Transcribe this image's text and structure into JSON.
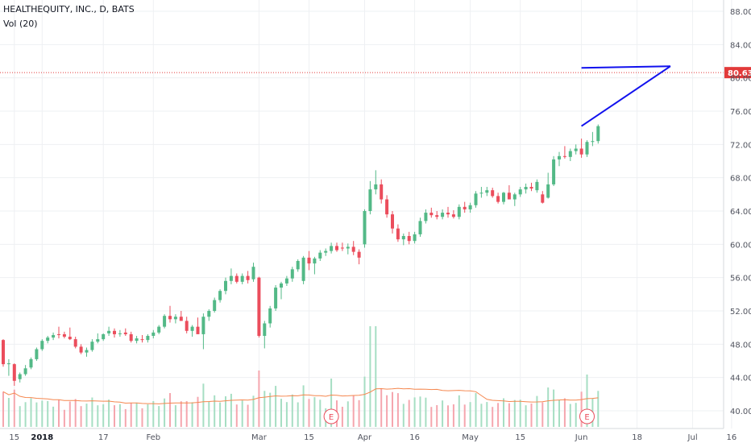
{
  "header": {
    "title": "HEALTHEQUITY, INC., D, BATS",
    "volume_label": "Vol (20)"
  },
  "colors": {
    "up": "#53b987",
    "down": "#eb4d5c",
    "vol_up": "#a6dec3",
    "vol_down": "#f5a6ae",
    "ma": "#f5874f",
    "trendline": "#1111ee",
    "price_line": "#e23a3a",
    "grid": "#eef0f3",
    "axis_text": "#50535e"
  },
  "chart_data": {
    "type": "candlestick",
    "title": "HEALTHEQUITY, INC., D, BATS",
    "ylim": [
      38,
      89
    ],
    "yticks": [
      "88.00",
      "84.00",
      "80.00",
      "76.00",
      "72.00",
      "68.00",
      "64.00",
      "60.00",
      "56.00",
      "52.00",
      "48.00",
      "44.00",
      "40.00"
    ],
    "ytick_values": [
      88,
      84,
      80,
      76,
      72,
      68,
      64,
      60,
      56,
      52,
      48,
      44,
      40
    ],
    "xticks": [
      {
        "label": "15",
        "index": 2,
        "bold": false
      },
      {
        "label": "2018",
        "index": 7,
        "bold": true
      },
      {
        "label": "17",
        "index": 18,
        "bold": false
      },
      {
        "label": "Feb",
        "index": 27,
        "bold": false
      },
      {
        "label": "Mar",
        "index": 46,
        "bold": false
      },
      {
        "label": "15",
        "index": 55,
        "bold": false
      },
      {
        "label": "Apr",
        "index": 65,
        "bold": false
      },
      {
        "label": "16",
        "index": 74,
        "bold": false
      },
      {
        "label": "May",
        "index": 84,
        "bold": false
      },
      {
        "label": "15",
        "index": 93,
        "bold": false
      },
      {
        "label": "Jun",
        "index": 104,
        "bold": false
      },
      {
        "label": "18",
        "index": 114,
        "bold": false
      },
      {
        "label": "Jul",
        "index": 124,
        "bold": false
      },
      {
        "label": "16",
        "index": 131,
        "bold": false
      }
    ],
    "last_price": "80.63",
    "last_price_value": 80.63,
    "earnings_markers": [
      {
        "label": "E",
        "index": 59
      },
      {
        "label": "E",
        "index": 105
      }
    ],
    "trendlines": [
      {
        "name": "resistance",
        "from": [
          104,
          81.2
        ],
        "to": [
          120,
          81.4
        ]
      },
      {
        "name": "support",
        "from": [
          104,
          74.2
        ],
        "to": [
          120,
          81.4
        ]
      }
    ],
    "candles": [
      [
        48.5,
        48.6,
        45.3,
        45.6
      ],
      [
        45.6,
        46.2,
        44.2,
        45.7
      ],
      [
        45.6,
        45.7,
        43.0,
        43.6
      ],
      [
        43.8,
        44.6,
        43.4,
        44.4
      ],
      [
        44.4,
        45.5,
        44.2,
        45.1
      ],
      [
        45.2,
        46.4,
        45.0,
        46.2
      ],
      [
        46.2,
        47.6,
        46.0,
        47.4
      ],
      [
        47.4,
        48.6,
        47.2,
        48.4
      ],
      [
        48.4,
        49.0,
        48.1,
        48.8
      ],
      [
        48.8,
        49.4,
        48.5,
        49.1
      ],
      [
        49.2,
        50.1,
        48.7,
        49.1
      ],
      [
        49.2,
        49.5,
        48.7,
        48.9
      ],
      [
        48.9,
        50.0,
        48.5,
        48.6
      ],
      [
        48.6,
        48.9,
        47.5,
        47.7
      ],
      [
        47.7,
        48.0,
        46.8,
        47.0
      ],
      [
        47.0,
        47.6,
        46.5,
        47.3
      ],
      [
        47.3,
        48.6,
        47.1,
        48.3
      ],
      [
        48.3,
        49.3,
        48.1,
        48.6
      ],
      [
        48.6,
        49.3,
        48.4,
        49.2
      ],
      [
        49.3,
        50.1,
        49.0,
        49.6
      ],
      [
        49.6,
        49.9,
        48.8,
        49.2
      ],
      [
        49.3,
        49.7,
        48.9,
        49.3
      ],
      [
        49.4,
        49.9,
        49.0,
        49.2
      ],
      [
        49.2,
        49.5,
        48.2,
        48.4
      ],
      [
        48.4,
        49.0,
        48.1,
        48.7
      ],
      [
        48.6,
        49.1,
        48.2,
        48.5
      ],
      [
        48.5,
        49.2,
        48.2,
        49.0
      ],
      [
        49.0,
        49.7,
        48.7,
        49.4
      ],
      [
        49.4,
        50.3,
        49.2,
        50.1
      ],
      [
        50.1,
        51.6,
        49.9,
        51.4
      ],
      [
        51.4,
        52.6,
        50.6,
        51.0
      ],
      [
        51.0,
        51.6,
        50.5,
        51.3
      ],
      [
        51.3,
        52.0,
        50.8,
        50.8
      ],
      [
        50.8,
        51.3,
        49.3,
        49.6
      ],
      [
        49.6,
        50.3,
        48.9,
        50.1
      ],
      [
        50.1,
        51.2,
        49.5,
        49.2
      ],
      [
        49.2,
        51.7,
        47.4,
        51.3
      ],
      [
        51.3,
        52.2,
        50.8,
        52.0
      ],
      [
        52.0,
        53.6,
        51.8,
        53.3
      ],
      [
        53.3,
        54.6,
        53.0,
        54.4
      ],
      [
        54.4,
        56.0,
        54.0,
        55.6
      ],
      [
        55.6,
        57.1,
        55.2,
        56.2
      ],
      [
        56.2,
        56.5,
        55.3,
        55.5
      ],
      [
        55.5,
        56.5,
        55.2,
        56.2
      ],
      [
        56.2,
        56.8,
        55.3,
        55.7
      ],
      [
        55.8,
        57.8,
        55.5,
        57.3
      ],
      [
        56.0,
        56.1,
        48.8,
        49.0
      ],
      [
        49.0,
        50.8,
        47.5,
        50.5
      ],
      [
        50.5,
        52.6,
        50.0,
        52.3
      ],
      [
        52.3,
        55.1,
        52.0,
        54.8
      ],
      [
        54.8,
        55.5,
        53.4,
        55.3
      ],
      [
        55.3,
        56.2,
        55.0,
        55.9
      ],
      [
        55.9,
        57.3,
        55.5,
        57.0
      ],
      [
        57.0,
        58.2,
        56.7,
        58.0
      ],
      [
        55.6,
        58.6,
        55.2,
        58.4
      ],
      [
        58.4,
        59.2,
        56.9,
        57.7
      ],
      [
        57.7,
        58.5,
        56.4,
        58.3
      ],
      [
        58.3,
        59.3,
        58.0,
        59.0
      ],
      [
        59.0,
        59.5,
        58.6,
        59.2
      ],
      [
        59.2,
        60.2,
        58.9,
        59.8
      ],
      [
        59.8,
        60.2,
        59.1,
        59.3
      ],
      [
        59.6,
        60.2,
        59.2,
        59.5
      ],
      [
        59.5,
        60.1,
        58.8,
        59.7
      ],
      [
        59.7,
        60.4,
        58.7,
        59.1
      ],
      [
        59.1,
        59.4,
        57.6,
        58.4
      ],
      [
        60.0,
        64.2,
        59.6,
        64.0
      ],
      [
        64.0,
        67.6,
        63.6,
        66.6
      ],
      [
        66.6,
        68.9,
        66.0,
        67.2
      ],
      [
        67.2,
        67.8,
        64.9,
        65.4
      ],
      [
        65.4,
        65.9,
        63.2,
        63.6
      ],
      [
        63.6,
        64.0,
        61.3,
        61.9
      ],
      [
        61.9,
        62.4,
        60.3,
        60.6
      ],
      [
        60.6,
        61.3,
        59.9,
        61.0
      ],
      [
        61.0,
        61.5,
        60.0,
        60.4
      ],
      [
        60.4,
        61.5,
        60.1,
        61.2
      ],
      [
        61.2,
        63.2,
        60.9,
        62.8
      ],
      [
        62.8,
        64.2,
        62.5,
        63.8
      ],
      [
        63.8,
        64.4,
        63.2,
        63.5
      ],
      [
        63.5,
        64.0,
        63.0,
        63.3
      ],
      [
        63.3,
        64.2,
        63.0,
        63.8
      ],
      [
        63.8,
        64.5,
        63.2,
        63.6
      ],
      [
        63.6,
        64.1,
        63.1,
        63.3
      ],
      [
        63.3,
        64.8,
        63.0,
        64.5
      ],
      [
        64.5,
        65.1,
        63.8,
        64.2
      ],
      [
        64.2,
        65.0,
        63.8,
        64.7
      ],
      [
        64.7,
        66.4,
        64.4,
        66.1
      ],
      [
        66.1,
        66.9,
        65.6,
        66.2
      ],
      [
        66.2,
        66.9,
        65.8,
        66.5
      ],
      [
        66.5,
        66.8,
        65.6,
        65.8
      ],
      [
        65.8,
        66.2,
        64.9,
        65.1
      ],
      [
        65.1,
        66.3,
        64.8,
        66.2
      ],
      [
        66.2,
        67.1,
        65.5,
        65.4
      ],
      [
        65.4,
        66.2,
        64.6,
        66.0
      ],
      [
        66.0,
        66.9,
        65.7,
        66.6
      ],
      [
        66.6,
        67.3,
        66.1,
        66.9
      ],
      [
        66.9,
        67.4,
        66.4,
        66.7
      ],
      [
        66.5,
        67.8,
        66.2,
        67.5
      ],
      [
        66.0,
        66.4,
        64.9,
        65.0
      ],
      [
        65.6,
        68.6,
        65.5,
        67.2
      ],
      [
        67.2,
        70.6,
        67.0,
        70.2
      ],
      [
        70.2,
        71.1,
        69.4,
        70.6
      ],
      [
        70.6,
        71.8,
        70.3,
        70.5
      ],
      [
        70.5,
        71.5,
        70.0,
        71.2
      ],
      [
        71.2,
        72.0,
        70.8,
        71.5
      ],
      [
        71.5,
        72.7,
        70.4,
        70.8
      ],
      [
        70.8,
        72.5,
        70.5,
        72.3
      ],
      [
        72.3,
        73.5,
        71.8,
        72.4
      ],
      [
        72.4,
        74.4,
        72.1,
        74.2
      ]
    ]
  }
}
